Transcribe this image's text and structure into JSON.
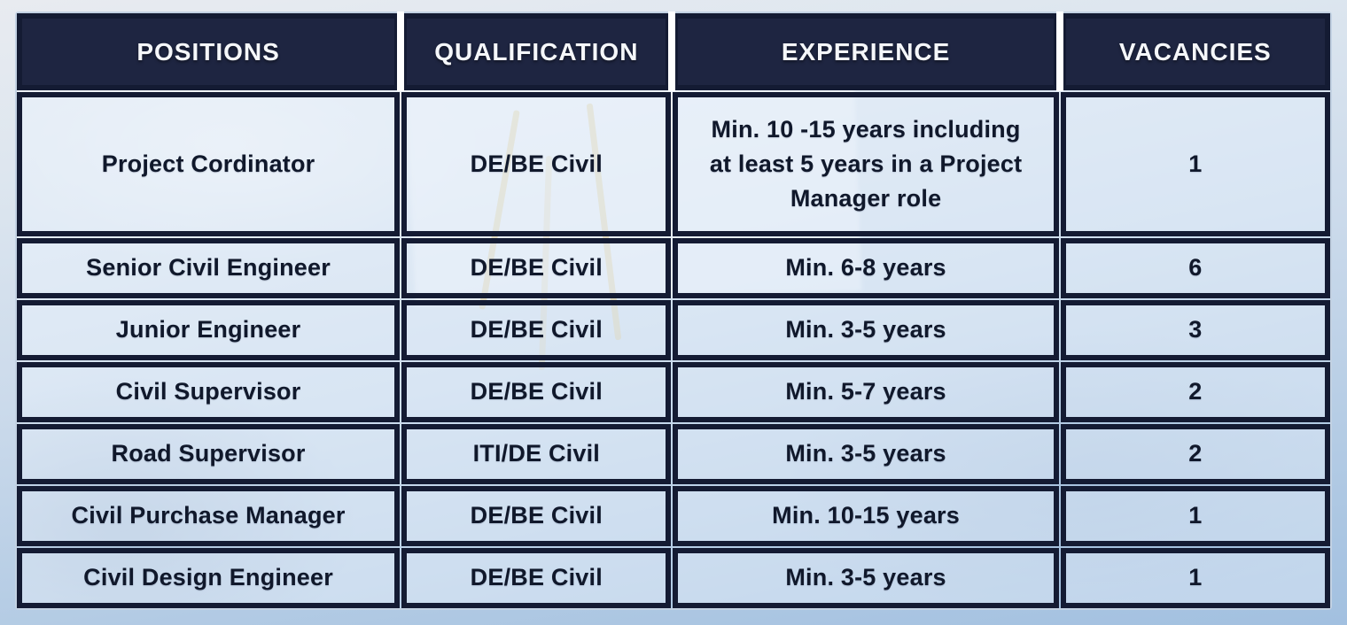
{
  "table": {
    "headers": [
      "POSITIONS",
      "QUALIFICATION",
      "EXPERIENCE",
      "VACANCIES"
    ],
    "rows": [
      {
        "position": "Project Cordinator",
        "qualification": "DE/BE Civil",
        "experience": "Min. 10 -15 years including\nat least 5 years in a Project\nManager role",
        "vacancies": "1"
      },
      {
        "position": "Senior Civil Engineer",
        "qualification": "DE/BE Civil",
        "experience": "Min. 6-8 years",
        "vacancies": "6"
      },
      {
        "position": "Junior Engineer",
        "qualification": "DE/BE Civil",
        "experience": "Min. 3-5 years",
        "vacancies": "3"
      },
      {
        "position": "Civil Supervisor",
        "qualification": "DE/BE Civil",
        "experience": "Min. 5-7 years",
        "vacancies": "2"
      },
      {
        "position": "Road Supervisor",
        "qualification": "ITI/DE Civil",
        "experience": "Min. 3-5 years",
        "vacancies": "2"
      },
      {
        "position": "Civil Purchase Manager",
        "qualification": "DE/BE Civil",
        "experience": "Min. 10-15 years",
        "vacancies": "1"
      },
      {
        "position": "Civil Design Engineer",
        "qualification": "DE/BE Civil",
        "experience": "Min. 3-5 years",
        "vacancies": "1"
      }
    ]
  },
  "colors": {
    "border_navy": "#141b33",
    "header_bg": "#1e2541",
    "header_text": "#f5f7fa",
    "body_text": "#10182b",
    "cell_bg": "#e1ecf7",
    "separator_white": "#ffffff",
    "tripod_yellow": "#dec478"
  }
}
